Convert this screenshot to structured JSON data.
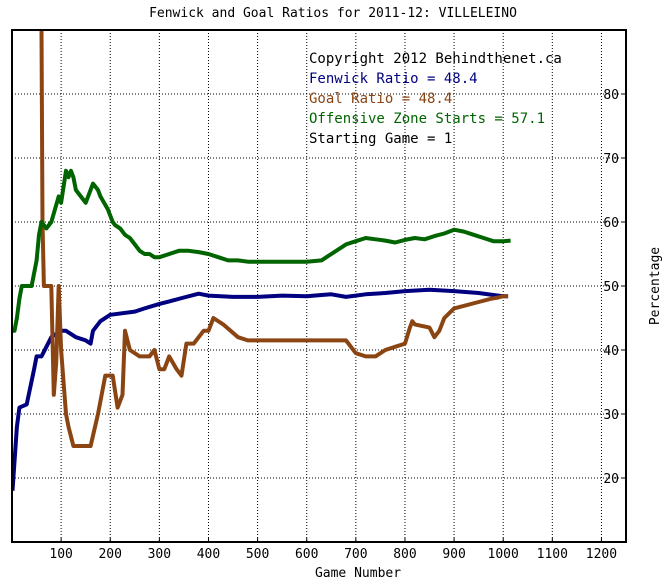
{
  "chart_data": {
    "type": "line",
    "title": "Fenwick and Goal Ratios for 2011-12: VILLELEINO",
    "xlabel": "Game Number",
    "ylabel": "Percentage",
    "xlim": [
      0,
      1250
    ],
    "ylim": [
      10,
      90
    ],
    "x_ticks": [
      100,
      200,
      300,
      400,
      500,
      600,
      700,
      800,
      900,
      1000,
      1100,
      1200
    ],
    "y_ticks": [
      20,
      30,
      40,
      50,
      60,
      70,
      80
    ],
    "y_axis_side": "right",
    "grid": true,
    "annotations": [
      {
        "id": "copyright",
        "text": "Copyright 2012 Behindthenet.ca",
        "color": "#000000"
      },
      {
        "id": "fenwick",
        "text": "Fenwick Ratio = 48.4",
        "color": "#000080"
      },
      {
        "id": "goal",
        "text": "Goal Ratio = 48.4",
        "color": "#8B4513"
      },
      {
        "id": "ozone",
        "text": "Offensive Zone Starts = 57.1",
        "color": "#006400"
      },
      {
        "id": "start",
        "text": "Starting Game = 1",
        "color": "#000000"
      }
    ],
    "series": [
      {
        "id": "fenwick",
        "color": "#000080",
        "x": [
          1,
          10,
          15,
          30,
          45,
          50,
          60,
          70,
          80,
          100,
          110,
          130,
          150,
          160,
          165,
          180,
          200,
          250,
          270,
          300,
          320,
          350,
          380,
          400,
          450,
          500,
          550,
          600,
          630,
          650,
          680,
          720,
          760,
          800,
          850,
          900,
          950,
          980,
          1000,
          1010
        ],
        "y": [
          18,
          28,
          31,
          31.5,
          37,
          39,
          39,
          40.5,
          42,
          43,
          43,
          42,
          41.5,
          41,
          43,
          44.5,
          45.5,
          46,
          46.5,
          47.2,
          47.6,
          48.2,
          48.8,
          48.5,
          48.3,
          48.3,
          48.5,
          48.4,
          48.6,
          48.7,
          48.3,
          48.7,
          48.9,
          49.2,
          49.4,
          49.2,
          48.9,
          48.6,
          48.4,
          48.4
        ]
      },
      {
        "id": "goal",
        "color": "#8B4513",
        "x": [
          55,
          60,
          62,
          65,
          70,
          80,
          85,
          90,
          95,
          100,
          110,
          115,
          125,
          140,
          160,
          175,
          190,
          205,
          215,
          225,
          230,
          240,
          260,
          280,
          290,
          300,
          310,
          320,
          335,
          345,
          355,
          370,
          390,
          400,
          410,
          430,
          460,
          480,
          500,
          600,
          680,
          700,
          720,
          740,
          760,
          780,
          800,
          810,
          815,
          820,
          850,
          860,
          870,
          880,
          900,
          950,
          975,
          990,
          1000,
          1010
        ],
        "y": [
          100,
          90,
          60,
          50,
          50,
          50,
          33,
          38,
          50,
          40,
          30,
          28,
          25,
          25,
          25,
          30,
          36,
          36,
          31,
          33,
          43,
          40,
          39,
          39,
          40,
          37,
          37,
          39,
          37,
          36,
          41,
          41,
          43,
          43,
          45,
          44,
          42,
          41.5,
          41.5,
          41.5,
          41.5,
          39.5,
          39,
          39,
          40,
          40.5,
          41,
          43.5,
          44.5,
          44,
          43.5,
          42,
          43,
          45,
          46.5,
          47.5,
          48,
          48.2,
          48.4,
          48.4
        ]
      },
      {
        "id": "ozone",
        "color": "#006400",
        "x": [
          1,
          5,
          10,
          15,
          20,
          40,
          50,
          55,
          60,
          70,
          80,
          95,
          100,
          110,
          115,
          120,
          125,
          130,
          140,
          150,
          165,
          175,
          180,
          195,
          205,
          210,
          220,
          230,
          240,
          250,
          260,
          270,
          280,
          290,
          300,
          320,
          340,
          360,
          380,
          400,
          420,
          440,
          460,
          480,
          500,
          550,
          600,
          630,
          650,
          680,
          700,
          720,
          740,
          760,
          780,
          800,
          820,
          840,
          860,
          880,
          900,
          920,
          940,
          960,
          980,
          1000,
          1015
        ],
        "y": [
          43,
          43,
          45,
          48,
          50,
          50,
          54,
          58,
          60,
          59,
          60,
          64,
          63,
          68,
          67,
          68,
          67,
          65,
          64,
          63,
          66,
          65,
          64,
          62,
          60,
          59.5,
          59,
          58,
          57.5,
          56.5,
          55.5,
          55,
          55,
          54.5,
          54.5,
          55,
          55.5,
          55.5,
          55.3,
          55,
          54.5,
          54,
          54,
          53.8,
          53.8,
          53.8,
          53.8,
          54,
          55,
          56.5,
          57,
          57.5,
          57.3,
          57.1,
          56.8,
          57.2,
          57.5,
          57.3,
          57.8,
          58.2,
          58.8,
          58.5,
          58,
          57.5,
          57,
          57,
          57.1
        ]
      }
    ]
  }
}
